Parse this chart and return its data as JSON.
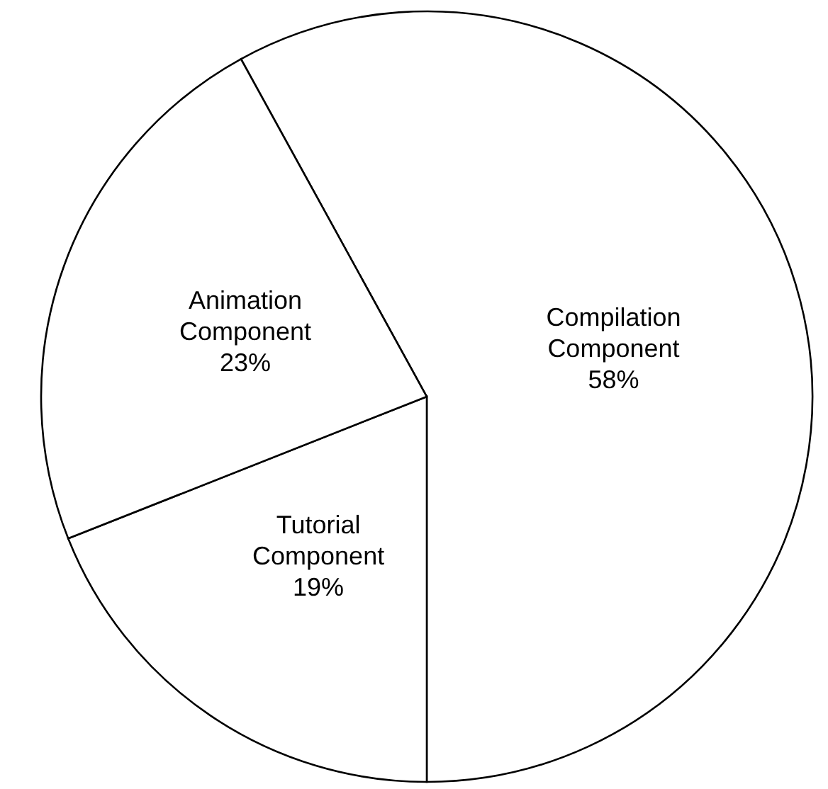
{
  "chart_data": {
    "type": "pie",
    "categories": [
      "Compilation Component",
      "Tutorial Component",
      "Animation Component"
    ],
    "values": [
      58,
      19,
      23
    ],
    "colors": [
      "#ffffff",
      "#ffffff",
      "#ffffff"
    ],
    "value_labels": [
      "58%",
      "19%",
      "23%"
    ]
  }
}
